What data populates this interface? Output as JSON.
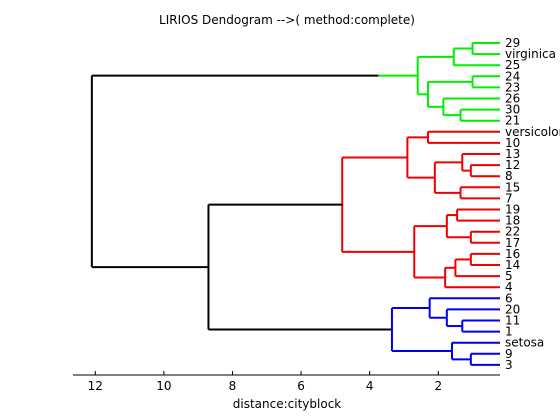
{
  "chart_data": {
    "type": "dendrogram",
    "title": "LIRIOS Dendogram -->( method:complete)",
    "xlabel": "distance:cityblock",
    "xlim": [
      0.2,
      12.65
    ],
    "x_reversed": true,
    "xticks": [
      12,
      10,
      8,
      6,
      4,
      2
    ],
    "leaves": [
      "29",
      "virginica",
      "25",
      "24",
      "23",
      "26",
      "30",
      "21",
      "versicolor",
      "10",
      "13",
      "12",
      "8",
      "15",
      "7",
      "19",
      "18",
      "22",
      "17",
      "16",
      "14",
      "5",
      "4",
      "6",
      "20",
      "11",
      "1",
      "setosa",
      "9",
      "3"
    ],
    "colors": {
      "virginica_cluster": "#00ee00",
      "versicolor_cluster": "#ee0000",
      "setosa_cluster": "#0000ee",
      "top_links": "#000000"
    },
    "merges": [
      {
        "id": "m1",
        "children": [
          "29",
          "virginica"
        ],
        "height": 1.0,
        "color": "#00ee00"
      },
      {
        "id": "m2",
        "children": [
          "m1",
          "25"
        ],
        "height": 1.55,
        "color": "#00ee00"
      },
      {
        "id": "m3",
        "children": [
          "24",
          "23"
        ],
        "height": 1.0,
        "color": "#00ee00"
      },
      {
        "id": "m4",
        "children": [
          "30",
          "21"
        ],
        "height": 1.35,
        "color": "#00ee00"
      },
      {
        "id": "m5",
        "children": [
          "26",
          "m4"
        ],
        "height": 1.85,
        "color": "#00ee00"
      },
      {
        "id": "m6",
        "children": [
          "m3",
          "m5"
        ],
        "height": 2.3,
        "color": "#00ee00"
      },
      {
        "id": "m7",
        "children": [
          "m2",
          "m6"
        ],
        "height": 2.6,
        "color": "#00ee00"
      },
      {
        "id": "m8",
        "children": [
          "m7"
        ],
        "height": 3.75,
        "color": "#00ee00"
      },
      {
        "id": "m9",
        "children": [
          "versicolor",
          "10"
        ],
        "height": 2.3,
        "color": "#ee0000"
      },
      {
        "id": "m10",
        "children": [
          "12",
          "8"
        ],
        "height": 1.05,
        "color": "#ee0000"
      },
      {
        "id": "m11",
        "children": [
          "13",
          "m10"
        ],
        "height": 1.3,
        "color": "#ee0000"
      },
      {
        "id": "m12",
        "children": [
          "15",
          "7"
        ],
        "height": 1.35,
        "color": "#ee0000"
      },
      {
        "id": "m13",
        "children": [
          "m11",
          "m12"
        ],
        "height": 2.1,
        "color": "#ee0000"
      },
      {
        "id": "m14",
        "children": [
          "m9",
          "m13"
        ],
        "height": 2.9,
        "color": "#ee0000"
      },
      {
        "id": "m15",
        "children": [
          "19",
          "18"
        ],
        "height": 1.45,
        "color": "#ee0000"
      },
      {
        "id": "m16",
        "children": [
          "22",
          "17"
        ],
        "height": 1.05,
        "color": "#ee0000"
      },
      {
        "id": "m17",
        "children": [
          "m15",
          "m16"
        ],
        "height": 1.75,
        "color": "#ee0000"
      },
      {
        "id": "m18",
        "children": [
          "16",
          "14"
        ],
        "height": 1.05,
        "color": "#ee0000"
      },
      {
        "id": "m19",
        "children": [
          "m18",
          "5"
        ],
        "height": 1.5,
        "color": "#ee0000"
      },
      {
        "id": "m20",
        "children": [
          "m19",
          "4"
        ],
        "height": 1.8,
        "color": "#ee0000"
      },
      {
        "id": "m21",
        "children": [
          "m17",
          "m20"
        ],
        "height": 2.7,
        "color": "#ee0000"
      },
      {
        "id": "m22",
        "children": [
          "m14",
          "m21"
        ],
        "height": 4.8,
        "color": "#ee0000"
      },
      {
        "id": "m23",
        "children": [
          "11",
          "1"
        ],
        "height": 1.3,
        "color": "#0000ee"
      },
      {
        "id": "m24",
        "children": [
          "20",
          "m23"
        ],
        "height": 1.75,
        "color": "#0000ee"
      },
      {
        "id": "m25",
        "children": [
          "6",
          "m24"
        ],
        "height": 2.25,
        "color": "#0000ee"
      },
      {
        "id": "m26",
        "children": [
          "9",
          "3"
        ],
        "height": 1.05,
        "color": "#0000ee"
      },
      {
        "id": "m27",
        "children": [
          "setosa",
          "m26"
        ],
        "height": 1.6,
        "color": "#0000ee"
      },
      {
        "id": "m28",
        "children": [
          "m25",
          "m27"
        ],
        "height": 3.35,
        "color": "#0000ee"
      },
      {
        "id": "m29",
        "children": [
          "m22",
          "m28"
        ],
        "height": 8.7,
        "color": "#000000"
      },
      {
        "id": "m30",
        "children": [
          "m8",
          "m29"
        ],
        "height": 12.1,
        "color": "#000000"
      }
    ]
  }
}
